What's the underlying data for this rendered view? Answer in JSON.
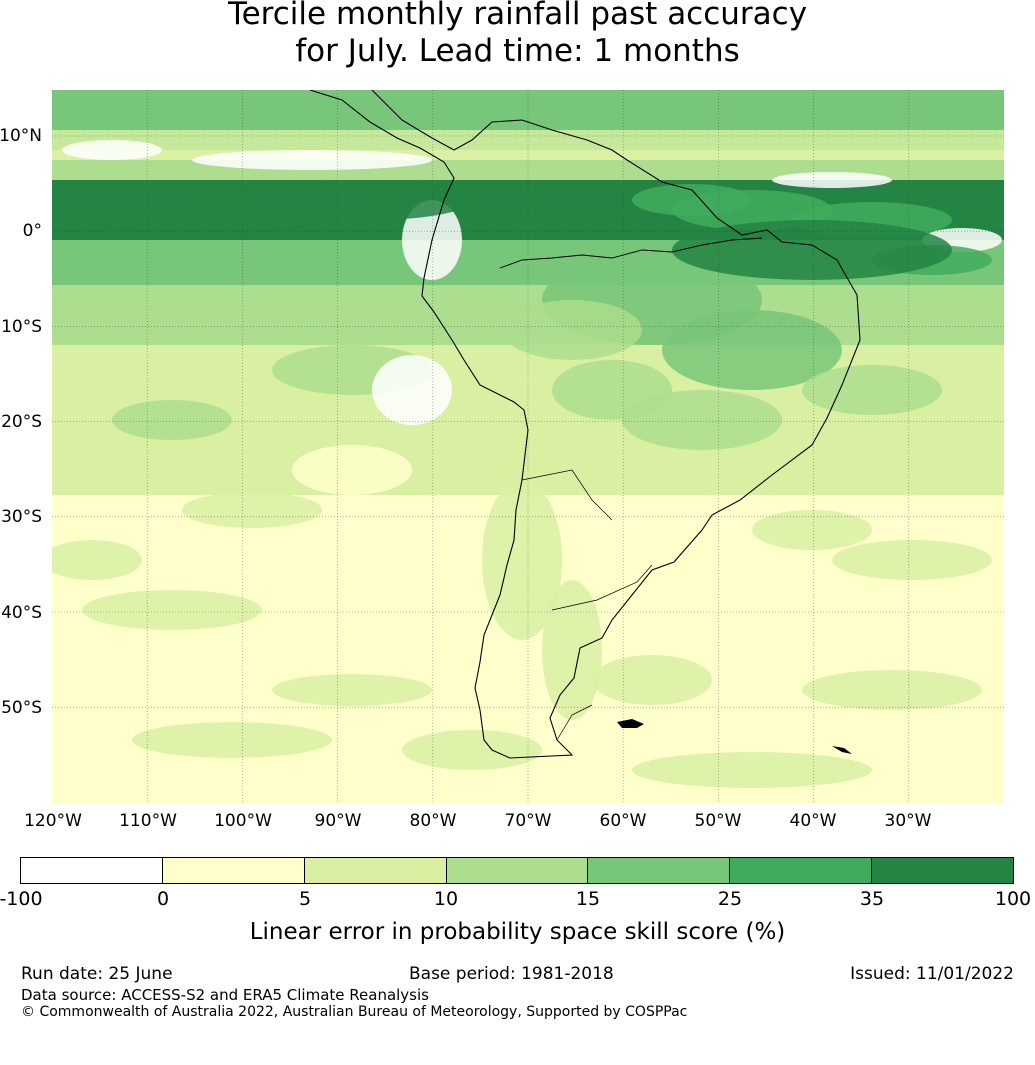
{
  "title": {
    "line1": "Tercile monthly rainfall past accuracy",
    "line2": "for July. Lead time: 1 months"
  },
  "map": {
    "region": "South America",
    "latitude_labels": [
      "10°N",
      "0°",
      "10°S",
      "20°S",
      "30°S",
      "40°S",
      "50°S"
    ],
    "longitude_labels": [
      "120°W",
      "110°W",
      "100°W",
      "90°W",
      "80°W",
      "70°W",
      "60°W",
      "50°W",
      "40°W",
      "30°W"
    ],
    "gridlines": true,
    "gridline_style": "dotted"
  },
  "colorbar": {
    "ticks": [
      "-100",
      "0",
      "5",
      "10",
      "15",
      "25",
      "35",
      "100"
    ],
    "colors": [
      "#ffffff",
      "#ffffcc",
      "#d9f0a3",
      "#addd8e",
      "#78c679",
      "#41ab5d",
      "#238443"
    ],
    "label": "Linear error in probability space skill score (%)"
  },
  "footer": {
    "run_date": "Run date: 25 June",
    "base_period": "Base period: 1981-2018",
    "issued": "Issued: 11/01/2022",
    "data_source": "Data source: ACCESS-S2 and ERA5 Climate Reanalysis",
    "copyright": "© Commonwealth of Australia 2022, Australian Bureau of Meteorology, Supported by COSPPac"
  }
}
